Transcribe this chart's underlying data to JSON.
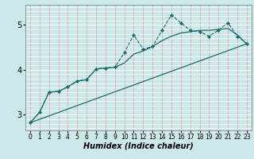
{
  "xlabel": "Humidex (Indice chaleur)",
  "bg_color": "#cce8e8",
  "hgrid_color": "#ffffff",
  "vgrid_color": "#ddaaaa",
  "line_color": "#1a6b6b",
  "xlim": [
    -0.5,
    23.5
  ],
  "ylim": [
    2.65,
    5.45
  ],
  "yticks": [
    3,
    4,
    5
  ],
  "xticks": [
    0,
    1,
    2,
    3,
    4,
    5,
    6,
    7,
    8,
    9,
    10,
    11,
    12,
    13,
    14,
    15,
    16,
    17,
    18,
    19,
    20,
    21,
    22,
    23
  ],
  "series_jagged_x": [
    0,
    1,
    2,
    3,
    4,
    5,
    6,
    7,
    8,
    9,
    10,
    11,
    12,
    13,
    14,
    15,
    16,
    17,
    18,
    19,
    20,
    21,
    22,
    23
  ],
  "series_jagged_y": [
    2.82,
    3.05,
    3.5,
    3.52,
    3.62,
    3.75,
    3.78,
    4.02,
    4.04,
    4.06,
    4.38,
    4.78,
    4.46,
    4.52,
    4.88,
    5.22,
    5.05,
    4.88,
    4.85,
    4.75,
    4.88,
    5.05,
    4.75,
    4.58
  ],
  "series_smooth_x": [
    0,
    1,
    2,
    3,
    4,
    5,
    6,
    7,
    8,
    9,
    10,
    11,
    12,
    13,
    14,
    15,
    16,
    17,
    18,
    19,
    20,
    21,
    22,
    23
  ],
  "series_smooth_y": [
    2.82,
    3.05,
    3.5,
    3.52,
    3.62,
    3.75,
    3.78,
    4.02,
    4.04,
    4.06,
    4.15,
    4.35,
    4.42,
    4.52,
    4.65,
    4.75,
    4.82,
    4.85,
    4.88,
    4.88,
    4.9,
    4.92,
    4.78,
    4.58
  ],
  "series_trend_x": [
    0,
    23
  ],
  "series_trend_y": [
    2.82,
    4.58
  ]
}
